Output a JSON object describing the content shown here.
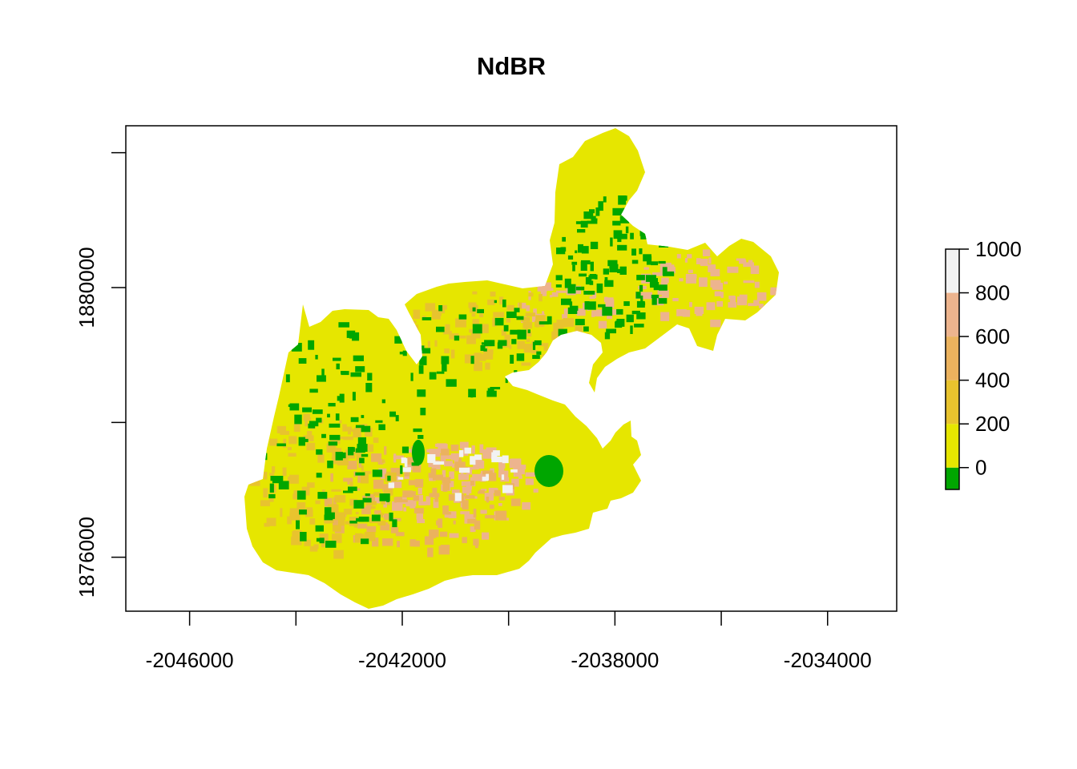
{
  "chart_data": {
    "type": "heatmap",
    "title": "NdBR",
    "xlabel": "",
    "ylabel": "",
    "xlim": [
      -2047200,
      -2032700
    ],
    "ylim": [
      1875200,
      1882400
    ],
    "x_ticks": [
      -2046000,
      -2044000,
      -2042000,
      -2040000,
      -2038000,
      -2036000,
      -2034000
    ],
    "x_tick_labels": [
      "-2046000",
      "",
      "-2042000",
      "",
      "-2038000",
      "",
      "-2034000"
    ],
    "y_ticks": [
      1876000,
      1878000,
      1880000,
      1882000
    ],
    "y_tick_labels": [
      "1876000",
      "",
      "1880000",
      ""
    ],
    "legend": {
      "position": "right",
      "breaks": [
        -100,
        0,
        200,
        400,
        600,
        800,
        1000
      ],
      "tick_values": [
        0,
        200,
        400,
        600,
        800,
        1000
      ],
      "tick_labels": [
        "0",
        "200",
        "400",
        "600",
        "800",
        "1000"
      ],
      "colors": [
        "#00A600",
        "#E6E600",
        "#E8C32E",
        "#EBB25E",
        "#EDB48E",
        "#F2F2F2"
      ]
    },
    "grid": false
  }
}
